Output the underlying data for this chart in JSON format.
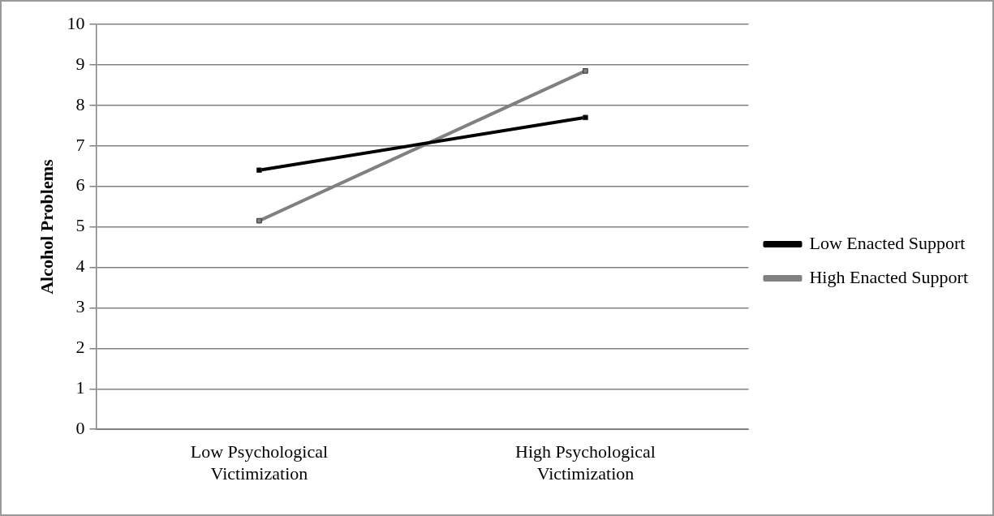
{
  "chart_data": {
    "type": "line",
    "ylabel": "Alcohol Problems",
    "categories": [
      "Low Psychological Victimization",
      "High Psychological Victimization"
    ],
    "series": [
      {
        "name": "Low Enacted Support",
        "color": "#000000",
        "values": [
          6.4,
          7.7
        ]
      },
      {
        "name": "High Enacted Support",
        "color": "#808080",
        "values": [
          5.15,
          8.85
        ]
      }
    ],
    "ylim": [
      0,
      10
    ],
    "yticks": [
      0,
      1,
      2,
      3,
      4,
      5,
      6,
      7,
      8,
      9,
      10
    ],
    "grid": "y",
    "legend": "right",
    "marker": "square",
    "line_style": "solid"
  }
}
